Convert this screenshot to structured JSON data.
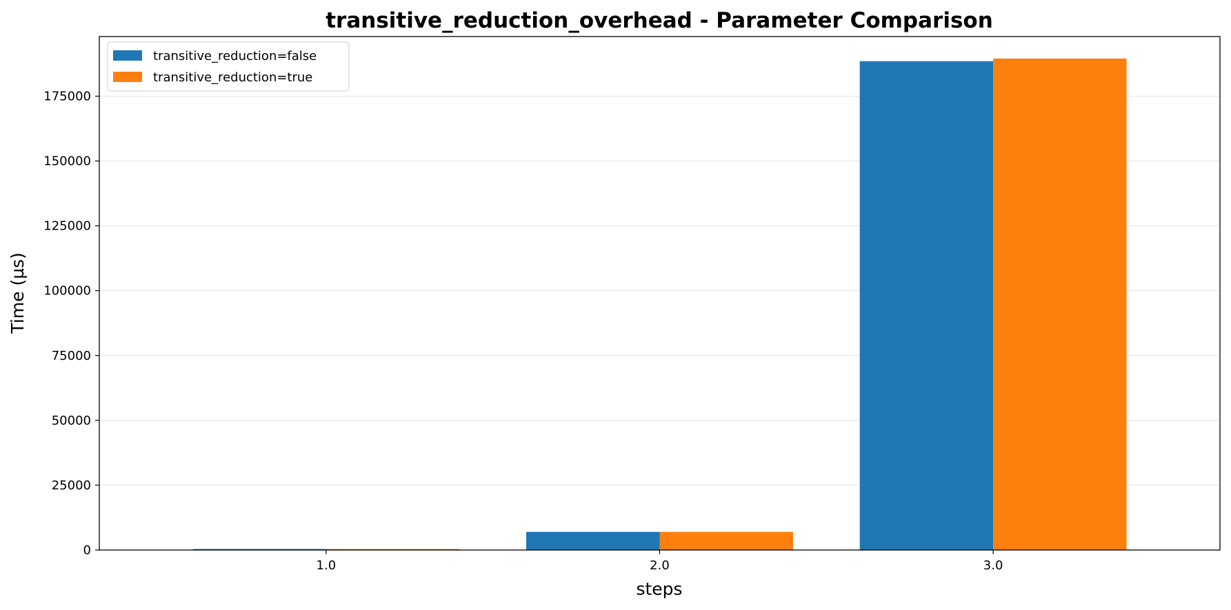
{
  "chart_data": {
    "type": "bar",
    "title": "transitive_reduction_overhead - Parameter Comparison",
    "xlabel": "steps",
    "ylabel": "Time (µs)",
    "categories": [
      "1.0",
      "2.0",
      "3.0"
    ],
    "series": [
      {
        "name": "transitive_reduction=false",
        "color": "#1f77b4",
        "values": [
          400,
          7000,
          188500
        ]
      },
      {
        "name": "transitive_reduction=true",
        "color": "#ff7f0e",
        "values": [
          400,
          7000,
          189500
        ]
      }
    ],
    "ylim": [
      0,
      198000
    ],
    "yticks": [
      0,
      25000,
      50000,
      75000,
      100000,
      125000,
      150000,
      175000
    ],
    "grid": "horizontal",
    "legend_position": "top-left"
  }
}
